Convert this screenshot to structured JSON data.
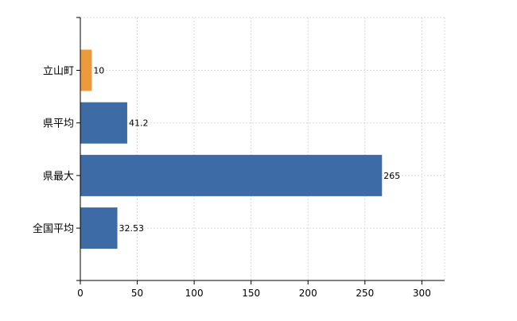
{
  "chart_data": {
    "type": "bar",
    "orientation": "horizontal",
    "categories": [
      "立山町",
      "県平均",
      "県最大",
      "全国平均"
    ],
    "values": [
      10,
      41.2,
      265,
      32.53
    ],
    "data_labels": [
      "10",
      "41.2",
      "265",
      "32.53"
    ],
    "bar_colors": [
      "#ED9A3E",
      "#3C6BA5",
      "#3C6BA5",
      "#3C6BA5"
    ],
    "xlim": [
      0,
      320
    ],
    "xticks": [
      0,
      50,
      100,
      150,
      200,
      250,
      300
    ],
    "grid": true,
    "legend": "none"
  }
}
